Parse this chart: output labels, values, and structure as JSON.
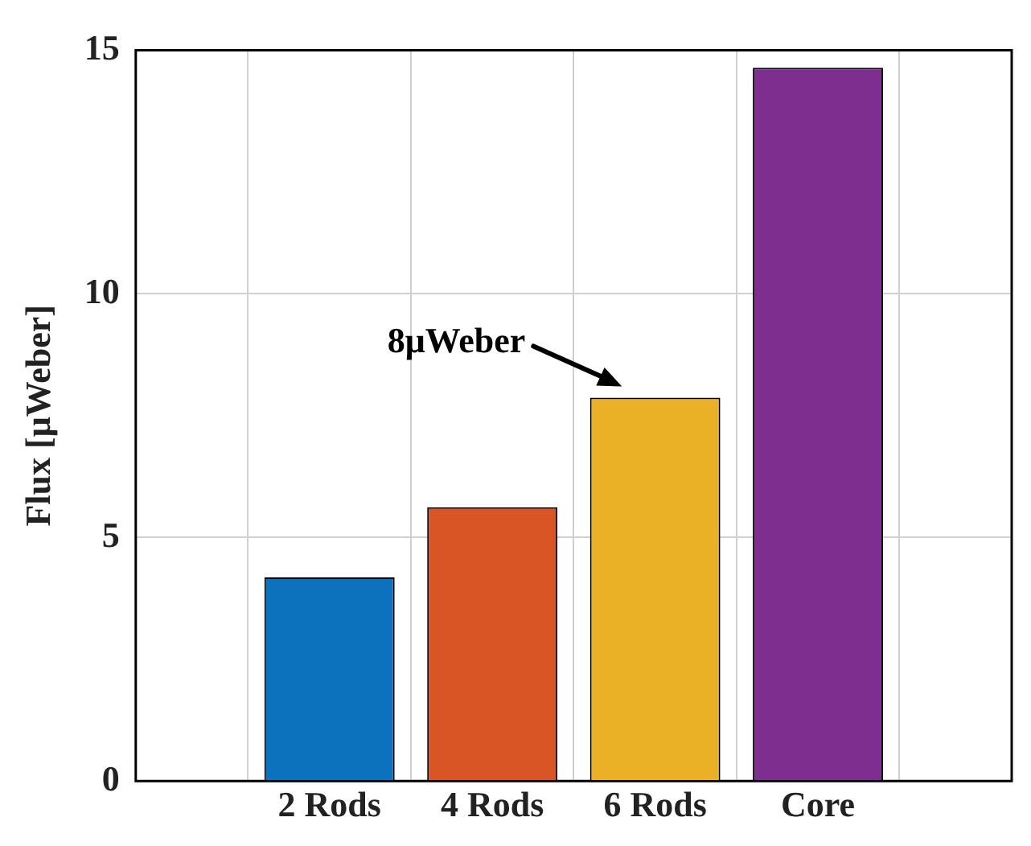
{
  "chart_data": {
    "type": "bar",
    "ylabel": "Flux [μWeber]",
    "categories": [
      "2 Rods",
      "4 Rods",
      "6 Rods",
      "Core"
    ],
    "values": [
      4.18,
      5.62,
      7.87,
      14.64
    ],
    "colors": [
      "#0c72bd",
      "#d95526",
      "#ebb126",
      "#7d2e8e"
    ],
    "ylim": [
      0,
      15
    ],
    "yticks": [
      0,
      5,
      10,
      15
    ],
    "grid": true,
    "annotations": [
      "8μWeber"
    ]
  }
}
